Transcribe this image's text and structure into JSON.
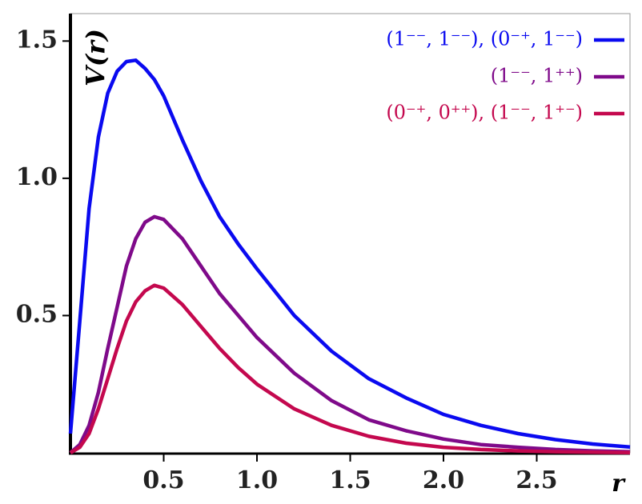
{
  "chart_data": {
    "type": "line",
    "x_label": "r",
    "y_label": "V(r)",
    "x": [
      0,
      0.05,
      0.1,
      0.15,
      0.2,
      0.25,
      0.3,
      0.35,
      0.4,
      0.45,
      0.5,
      0.6,
      0.7,
      0.8,
      0.9,
      1.0,
      1.2,
      1.4,
      1.6,
      1.8,
      2.0,
      2.2,
      2.4,
      2.6,
      2.8,
      3.0
    ],
    "series": [
      {
        "name": "(1⁻⁻, 1⁻⁻), (0⁻⁺, 1⁻⁻)",
        "color": "#0a0af0",
        "values": [
          0.07,
          0.48,
          0.89,
          1.15,
          1.31,
          1.39,
          1.425,
          1.43,
          1.4,
          1.36,
          1.3,
          1.14,
          0.99,
          0.86,
          0.76,
          0.67,
          0.5,
          0.37,
          0.27,
          0.2,
          0.14,
          0.1,
          0.07,
          0.048,
          0.032,
          0.021
        ]
      },
      {
        "name": "(1⁻⁻, 1⁺⁺)",
        "color": "#7f0a8a",
        "values": [
          0,
          0.03,
          0.1,
          0.22,
          0.38,
          0.53,
          0.68,
          0.78,
          0.84,
          0.86,
          0.85,
          0.78,
          0.68,
          0.58,
          0.5,
          0.42,
          0.29,
          0.19,
          0.12,
          0.08,
          0.05,
          0.03,
          0.02,
          0.012,
          0.007,
          0.004
        ]
      },
      {
        "name": "(0⁻⁺, 0⁺⁺), (1⁻⁻, 1⁺⁻)",
        "color": "#c4084e",
        "values": [
          0,
          0.02,
          0.07,
          0.16,
          0.27,
          0.38,
          0.48,
          0.55,
          0.59,
          0.61,
          0.6,
          0.54,
          0.46,
          0.38,
          0.31,
          0.25,
          0.16,
          0.1,
          0.06,
          0.035,
          0.02,
          0.012,
          0.007,
          0.004,
          0.002,
          0.001
        ]
      }
    ],
    "xlim": [
      0,
      3
    ],
    "ylim": [
      0,
      1.6
    ],
    "xticks": [
      0.5,
      {
        "value": 1,
        "label": "1.0"
      },
      1.5,
      {
        "value": 2,
        "label": "2.0"
      },
      2.5
    ],
    "yticks": [
      0.5,
      {
        "value": 1,
        "label": "1.0"
      },
      1.5
    ],
    "legend": "upper right"
  }
}
